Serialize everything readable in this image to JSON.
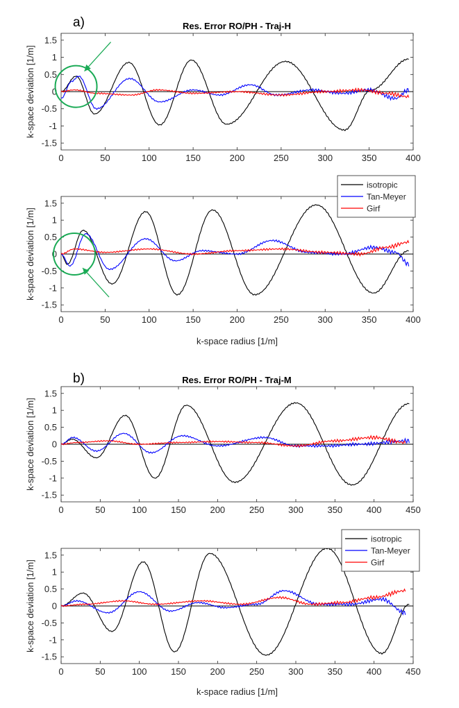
{
  "figure": {
    "label_a": "a)",
    "label_b": "b)",
    "title_a": "Res. Error RO/PH - Traj-H",
    "title_b": "Res. Error RO/PH - Traj-M",
    "xlabel": "k-space radius [1/m]",
    "ylabel": "k-space deviation [1/m]",
    "colors": {
      "isotropic": "#000000",
      "tan_meyer": "#0000ff",
      "girf": "#ff0000",
      "marker": "#1aaa55"
    }
  },
  "chart_data": [
    {
      "id": "a-top",
      "type": "line",
      "title": "Res. Error RO/PH - Traj-H",
      "xlabel": "",
      "ylabel": "k-space deviation [1/m]",
      "xlim": [
        0,
        400
      ],
      "ylim": [
        -1.7,
        1.7
      ],
      "xticks": [
        0,
        50,
        100,
        150,
        200,
        250,
        300,
        350,
        400
      ],
      "yticks": [
        -1.5,
        -1,
        -0.5,
        0,
        0.5,
        1,
        1.5
      ],
      "ytick_labels": [
        "-1.5",
        "-1",
        "-0.5",
        "0",
        "0.5",
        "1",
        "1.5"
      ],
      "legend": null,
      "annotation": {
        "circle_center": [
          17,
          0.15
        ],
        "arrow_direction": "from upper-right"
      },
      "series": [
        {
          "name": "isotropic",
          "x": [
            0,
            17,
            38,
            77,
            112,
            148,
            188,
            255,
            322,
            352,
            395
          ],
          "y": [
            0,
            0.45,
            -0.65,
            0.85,
            -0.97,
            0.92,
            -0.95,
            0.88,
            -1.12,
            0.05,
            0.95
          ]
        },
        {
          "name": "Tan-Meyer",
          "x": [
            0,
            12,
            20,
            40,
            78,
            112,
            150,
            180,
            215,
            245,
            285,
            320,
            350,
            380,
            395
          ],
          "y": [
            -0.2,
            0.3,
            0.45,
            -0.5,
            0.38,
            -0.3,
            0.05,
            -0.1,
            0.2,
            -0.1,
            0.05,
            -0.05,
            0.05,
            -0.2,
            0.05
          ]
        },
        {
          "name": "Girf",
          "x": [
            0,
            15,
            40,
            80,
            110,
            150,
            200,
            250,
            300,
            340,
            370,
            395
          ],
          "y": [
            0,
            0.05,
            -0.05,
            -0.1,
            0.05,
            -0.05,
            0.0,
            -0.1,
            0.0,
            0.05,
            -0.05,
            -0.15
          ]
        }
      ]
    },
    {
      "id": "a-bottom",
      "type": "line",
      "title": "",
      "xlabel": "k-space radius [1/m]",
      "ylabel": "k-space deviation [1/m]",
      "xlim": [
        0,
        400
      ],
      "ylim": [
        -1.7,
        1.7
      ],
      "xticks": [
        0,
        50,
        100,
        150,
        200,
        250,
        300,
        350,
        400
      ],
      "yticks": [
        -1.5,
        -1,
        -0.5,
        0,
        0.5,
        1,
        1.5
      ],
      "ytick_labels": [
        "-1.5",
        "-1",
        "-0.5",
        "0",
        "0.5",
        "1",
        "1.5"
      ],
      "legend": [
        "isotropic",
        "Tan-Meyer",
        "Girf"
      ],
      "annotation": {
        "circle_center": [
          15,
          0.0
        ],
        "arrow_direction": "from lower-right"
      },
      "series": [
        {
          "name": "isotropic",
          "x": [
            0,
            7,
            25,
            58,
            96,
            132,
            172,
            220,
            290,
            355,
            395
          ],
          "y": [
            0,
            -0.3,
            0.7,
            -0.88,
            1.25,
            -1.2,
            1.3,
            -1.2,
            1.45,
            -1.15,
            0.1
          ]
        },
        {
          "name": "Tan-Meyer",
          "x": [
            0,
            10,
            28,
            55,
            96,
            130,
            160,
            200,
            240,
            280,
            320,
            355,
            380,
            395
          ],
          "y": [
            0,
            -0.35,
            0.6,
            -0.45,
            0.45,
            -0.2,
            0.1,
            0.0,
            0.4,
            0.05,
            0.0,
            0.2,
            0.05,
            -0.3
          ]
        },
        {
          "name": "Girf",
          "x": [
            0,
            15,
            50,
            100,
            150,
            200,
            250,
            300,
            340,
            370,
            395
          ],
          "y": [
            0,
            0.15,
            0.05,
            0.15,
            0.0,
            0.1,
            0.15,
            0.05,
            0.0,
            0.2,
            0.35
          ]
        }
      ]
    },
    {
      "id": "b-top",
      "type": "line",
      "title": "Res. Error RO/PH - Traj-M",
      "xlabel": "",
      "ylabel": "k-space deviation [1/m]",
      "xlim": [
        0,
        450
      ],
      "ylim": [
        -1.7,
        1.7
      ],
      "xticks": [
        0,
        50,
        100,
        150,
        200,
        250,
        300,
        350,
        400,
        450
      ],
      "yticks": [
        -1.5,
        -1,
        -0.5,
        0,
        0.5,
        1,
        1.5
      ],
      "ytick_labels": [
        "-1.5",
        "-1",
        "-0.5",
        "0",
        "0.5",
        "1",
        "1.5"
      ],
      "legend": null,
      "series": [
        {
          "name": "isotropic",
          "x": [
            0,
            14,
            45,
            82,
            120,
            160,
            222,
            300,
            372,
            445
          ],
          "y": [
            0,
            0.15,
            -0.4,
            0.85,
            -1.0,
            1.15,
            -1.12,
            1.22,
            -1.2,
            1.2
          ]
        },
        {
          "name": "Tan-Meyer",
          "x": [
            0,
            15,
            45,
            80,
            115,
            155,
            200,
            260,
            300,
            340,
            380,
            445
          ],
          "y": [
            0,
            0.2,
            -0.2,
            0.32,
            -0.25,
            0.25,
            -0.05,
            0.2,
            -0.05,
            -0.05,
            0.0,
            0.1
          ]
        },
        {
          "name": "Girf",
          "x": [
            0,
            20,
            60,
            100,
            150,
            200,
            250,
            300,
            350,
            400,
            440
          ],
          "y": [
            0,
            0.05,
            0.1,
            0.0,
            0.05,
            0.08,
            0.05,
            -0.05,
            0.1,
            0.2,
            0.05
          ]
        }
      ]
    },
    {
      "id": "b-bottom",
      "type": "line",
      "title": "",
      "xlabel": "k-space radius [1/m]",
      "ylabel": "k-space deviation [1/m]",
      "xlim": [
        0,
        450
      ],
      "ylim": [
        -1.7,
        1.7
      ],
      "xticks": [
        0,
        50,
        100,
        150,
        200,
        250,
        300,
        350,
        400,
        450
      ],
      "yticks": [
        -1.5,
        -1,
        -0.5,
        0,
        0.5,
        1,
        1.5
      ],
      "ytick_labels": [
        "-1.5",
        "-1",
        "-0.5",
        "0",
        "0.5",
        "1",
        "1.5"
      ],
      "legend": [
        "isotropic",
        "Tan-Meyer",
        "Girf"
      ],
      "series": [
        {
          "name": "isotropic",
          "x": [
            0,
            28,
            65,
            105,
            145,
            190,
            262,
            340,
            410,
            445
          ],
          "y": [
            0,
            0.38,
            -0.75,
            1.3,
            -1.35,
            1.55,
            -1.45,
            1.7,
            -1.4,
            0.05
          ]
        },
        {
          "name": "Tan-Meyer",
          "x": [
            0,
            20,
            60,
            100,
            140,
            175,
            210,
            250,
            285,
            330,
            370,
            410,
            440
          ],
          "y": [
            0,
            0.15,
            -0.2,
            0.42,
            -0.15,
            0.1,
            -0.05,
            0.05,
            0.45,
            0.05,
            0.05,
            0.2,
            -0.2
          ]
        },
        {
          "name": "Girf",
          "x": [
            0,
            30,
            80,
            120,
            180,
            230,
            280,
            320,
            360,
            400,
            440
          ],
          "y": [
            0,
            0.05,
            0.15,
            0.05,
            0.15,
            0.05,
            0.25,
            0.05,
            0.1,
            0.25,
            0.45
          ]
        }
      ]
    }
  ]
}
